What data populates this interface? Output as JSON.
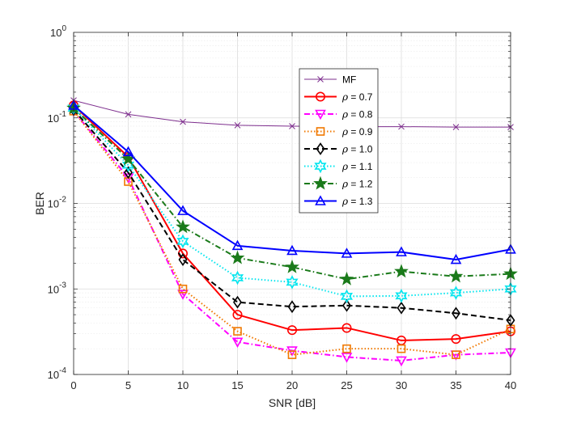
{
  "chart_data": {
    "type": "line",
    "yscale": "log",
    "title": "",
    "xlabel": "SNR [dB]",
    "ylabel": "BER",
    "xlim": [
      0,
      40
    ],
    "ylim": [
      0.0001,
      1
    ],
    "grid": true,
    "legend_location": "upper-center",
    "x_ticks": [
      0,
      5,
      10,
      15,
      20,
      25,
      30,
      35,
      40
    ],
    "x_tick_labels": [
      "0",
      "5",
      "10",
      "15",
      "20",
      "25",
      "30",
      "35",
      "40"
    ],
    "y_ticks": [
      0.0001,
      0.001,
      0.01,
      0.1,
      1
    ],
    "y_tick_labels": [
      {
        "base": "10",
        "exp": "-4"
      },
      {
        "base": "10",
        "exp": "-3"
      },
      {
        "base": "10",
        "exp": "-2"
      },
      {
        "base": "10",
        "exp": "-1"
      },
      {
        "base": "10",
        "exp": "0"
      }
    ],
    "x": [
      0,
      5,
      10,
      15,
      20,
      25,
      30,
      35,
      40
    ],
    "series": [
      {
        "name": "MF",
        "label_prefix": "",
        "label_value": "MF",
        "color": "#7e2f8e",
        "dash": "solid",
        "width": 1.0,
        "marker": "x",
        "values": [
          0.16,
          0.11,
          0.09,
          0.082,
          0.08,
          0.079,
          0.079,
          0.078,
          0.078
        ]
      },
      {
        "name": "rho = 0.7",
        "label_prefix": "ρ",
        "label_value": " = 0.7",
        "color": "#ff0000",
        "dash": "solid",
        "width": 2.0,
        "marker": "circle",
        "values": [
          0.14,
          0.035,
          0.0026,
          0.0005,
          0.00033,
          0.00035,
          0.00025,
          0.00026,
          0.00032
        ]
      },
      {
        "name": "rho = 0.8",
        "label_prefix": "ρ",
        "label_value": " = 0.8",
        "color": "#ff00ff",
        "dash": "dashdot",
        "width": 2.0,
        "marker": "triangle-down",
        "values": [
          0.12,
          0.02,
          0.00087,
          0.00024,
          0.00019,
          0.00016,
          0.000145,
          0.00017,
          0.00018
        ]
      },
      {
        "name": "rho = 0.9",
        "label_prefix": "ρ",
        "label_value": " = 0.9",
        "color": "#f07800",
        "dash": "dotted",
        "width": 2.0,
        "marker": "square",
        "values": [
          0.12,
          0.018,
          0.001,
          0.00032,
          0.00017,
          0.0002,
          0.0002,
          0.00017,
          0.00034
        ]
      },
      {
        "name": "rho = 1.0",
        "label_prefix": "ρ",
        "label_value": " = 1.0",
        "color": "#000000",
        "dash": "dashed",
        "width": 2.0,
        "marker": "diamond",
        "values": [
          0.125,
          0.023,
          0.0022,
          0.0007,
          0.00062,
          0.00064,
          0.0006,
          0.00052,
          0.00043
        ]
      },
      {
        "name": "rho = 1.1",
        "label_prefix": "ρ",
        "label_value": " = 1.1",
        "color": "#00e5ee",
        "dash": "dotted",
        "width": 2.0,
        "marker": "hexagram",
        "values": [
          0.13,
          0.028,
          0.0036,
          0.00135,
          0.0012,
          0.00082,
          0.00083,
          0.0009,
          0.001
        ]
      },
      {
        "name": "rho = 1.2",
        "label_prefix": "ρ",
        "label_value": " = 1.2",
        "color": "#1a7a1a",
        "dash": "dashdot",
        "width": 2.0,
        "marker": "pentagram",
        "values": [
          0.13,
          0.033,
          0.0053,
          0.0023,
          0.0018,
          0.0013,
          0.0016,
          0.0014,
          0.0015
        ]
      },
      {
        "name": "rho = 1.3",
        "label_prefix": "ρ",
        "label_value": " = 1.3",
        "color": "#0000ff",
        "dash": "solid",
        "width": 2.0,
        "marker": "triangle-up",
        "values": [
          0.14,
          0.04,
          0.0082,
          0.0032,
          0.0028,
          0.0026,
          0.0027,
          0.0022,
          0.0029
        ]
      }
    ]
  }
}
